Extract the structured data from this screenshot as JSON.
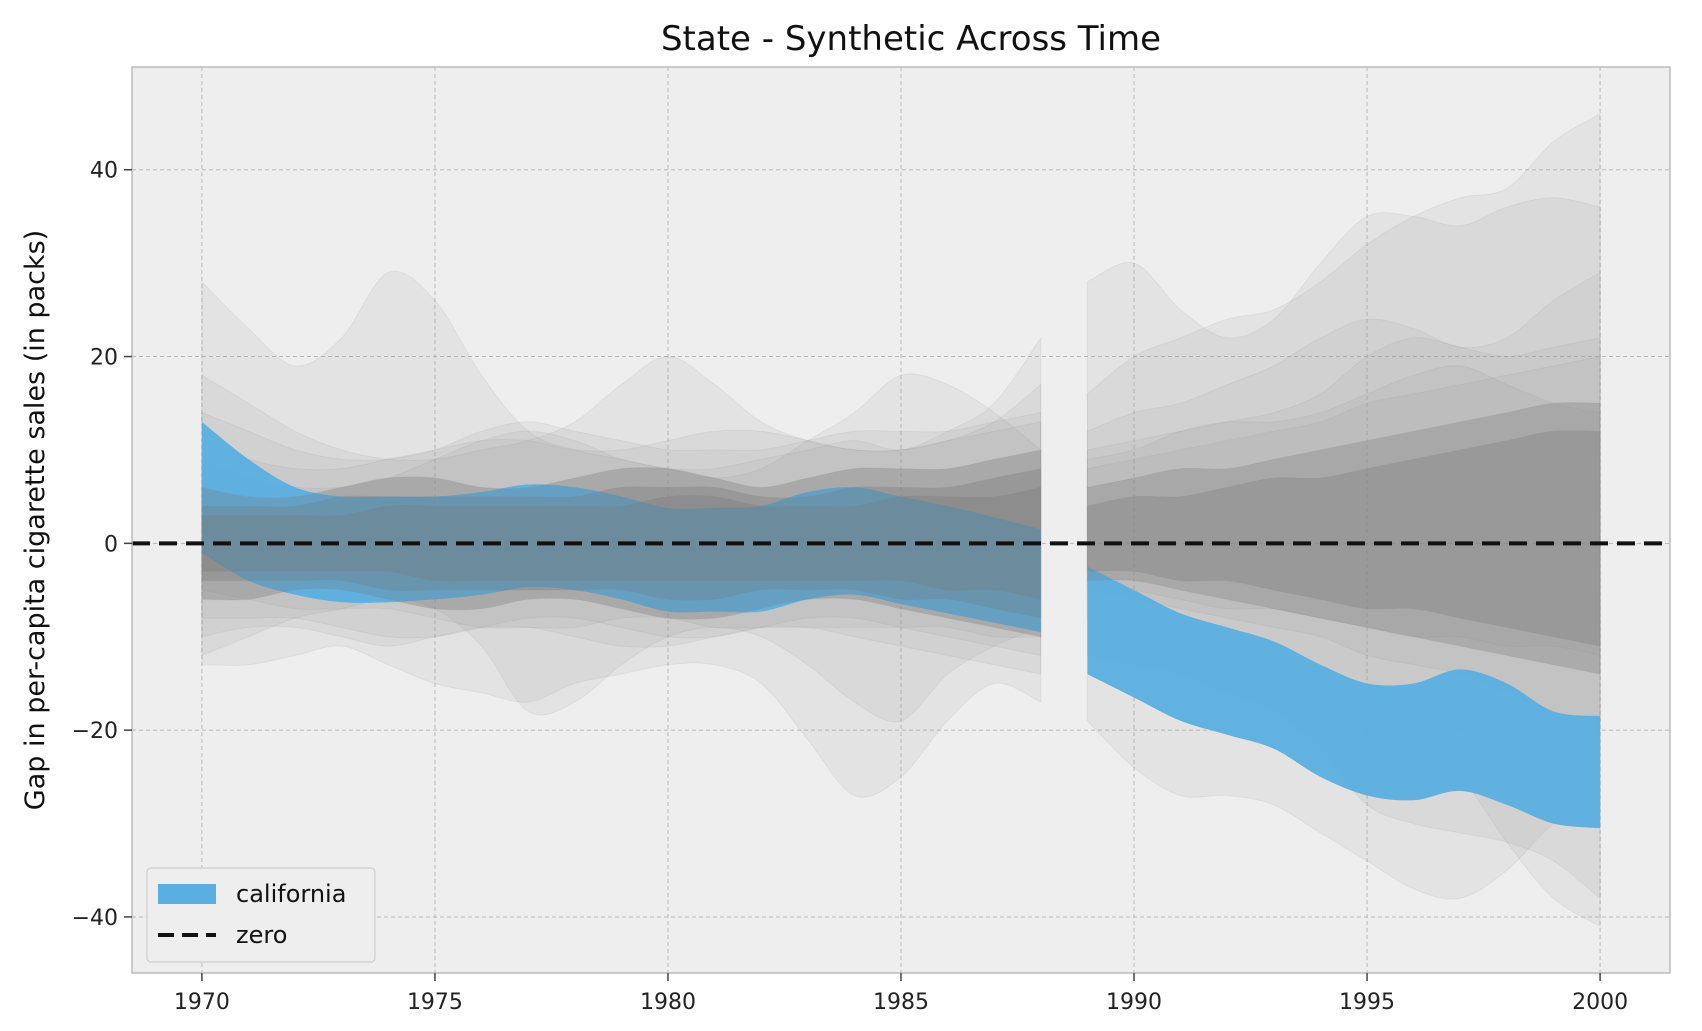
{
  "chart_data": {
    "type": "area",
    "title": "State - Synthetic Across Time",
    "xlabel": "",
    "ylabel": "Gap in per-capita cigarette sales (in packs)",
    "xlim": [
      1968.5,
      2001.5
    ],
    "ylim": [
      -46,
      51
    ],
    "xticks": [
      1970,
      1975,
      1980,
      1985,
      1990,
      1995,
      2000
    ],
    "yticks": [
      -40,
      -20,
      0,
      20,
      40
    ],
    "xtick_labels": [
      "1970",
      "1975",
      "1980",
      "1985",
      "1990",
      "1995",
      "2000"
    ],
    "ytick_labels": [
      "−40",
      "−20",
      "0",
      "20",
      "40"
    ],
    "grid": true,
    "legend_position": "lower-left",
    "colors": {
      "background": "#eeeeee",
      "california": "#5aafe0",
      "placebo": "#9a9a9a",
      "zero": "#111111",
      "grid": "#b8b8b8"
    },
    "zero_line": {
      "name": "zero",
      "y": 0
    },
    "california": {
      "name": "california",
      "segments": [
        {
          "x": [
            1970,
            1971,
            1972,
            1973,
            1974,
            1975,
            1976,
            1977,
            1978,
            1979,
            1980,
            1981,
            1982,
            1983,
            1984,
            1985,
            1986,
            1987,
            1988
          ],
          "upper": [
            13,
            9,
            6,
            5,
            5,
            5,
            5.5,
            6.3,
            6,
            5,
            3.8,
            3.8,
            4,
            5.5,
            6,
            5,
            4,
            2.8,
            1.5
          ],
          "lower": [
            -1,
            -4,
            -5.5,
            -6.3,
            -6.3,
            -6,
            -5.5,
            -4.7,
            -5,
            -6,
            -7.3,
            -7.3,
            -7.3,
            -6,
            -5.5,
            -6.5,
            -7.5,
            -8.5,
            -9.5
          ]
        },
        {
          "x": [
            1989,
            1990,
            1991,
            1992,
            1993,
            1994,
            1995,
            1996,
            1997,
            1998,
            1999,
            2000
          ],
          "upper": [
            -2.5,
            -5,
            -7.5,
            -9,
            -10.5,
            -13,
            -15,
            -15,
            -13.5,
            -15,
            -18,
            -18.5
          ],
          "lower": [
            -14,
            -16.5,
            -19,
            -20.5,
            -22,
            -25,
            -27,
            -27.5,
            -26.5,
            -28,
            -30,
            -30.5
          ]
        }
      ]
    },
    "placebo_bands": {
      "description_count": 38,
      "segments": [
        {
          "x": [
            1970,
            1971,
            1972,
            1973,
            1974,
            1975,
            1976,
            1977,
            1978,
            1979,
            1980,
            1981,
            1982,
            1983,
            1984,
            1985,
            1986,
            1987,
            1988
          ],
          "bands": [
            {
              "upper": [
                28,
                23,
                19,
                22,
                29,
                26,
                18,
                12,
                10,
                9,
                8,
                8,
                9,
                10,
                11,
                10,
                12,
                15,
                22
              ],
              "lower": [
                -10,
                -9,
                -9,
                -10,
                -11,
                -10,
                -9,
                -9,
                -10,
                -11,
                -11,
                -10,
                -9,
                -9,
                -10,
                -11,
                -12,
                -13,
                -14
              ]
            },
            {
              "upper": [
                18,
                15,
                12,
                10,
                9,
                9,
                10,
                11,
                13,
                17,
                20,
                17,
                13,
                11,
                10,
                10,
                11,
                13,
                17
              ],
              "lower": [
                -13,
                -13,
                -12,
                -11,
                -13,
                -15,
                -16,
                -17,
                -15,
                -14,
                -13,
                -13,
                -15,
                -21,
                -27,
                -25,
                -19,
                -15,
                -17
              ]
            },
            {
              "upper": [
                9,
                7,
                6,
                6,
                7,
                9,
                11,
                12,
                11,
                9,
                8,
                7,
                8,
                11,
                14,
                18,
                17,
                14,
                10
              ],
              "lower": [
                -12,
                -10,
                -8,
                -7,
                -6,
                -7,
                -11,
                -18,
                -17,
                -13,
                -10,
                -9,
                -10,
                -13,
                -17,
                -19,
                -14,
                -11,
                -9
              ]
            },
            {
              "upper": [
                11,
                9,
                8,
                8,
                9,
                10,
                11,
                11,
                10,
                10,
                11,
                12,
                12,
                11,
                10,
                10,
                11,
                12,
                13
              ],
              "lower": [
                -8,
                -8,
                -8,
                -9,
                -10,
                -10,
                -9,
                -8,
                -8,
                -9,
                -10,
                -10,
                -9,
                -8,
                -8,
                -9,
                -10,
                -11,
                -12
              ]
            },
            {
              "upper": [
                6,
                5,
                5,
                6,
                7,
                7,
                6,
                6,
                7,
                8,
                8,
                7,
                6,
                7,
                8,
                8,
                8,
                9,
                10
              ],
              "lower": [
                -6,
                -6,
                -5,
                -5,
                -6,
                -7,
                -7,
                -6,
                -6,
                -7,
                -8,
                -8,
                -7,
                -6,
                -6,
                -7,
                -8,
                -9,
                -10
              ]
            },
            {
              "upper": [
                4,
                4,
                4,
                5,
                5,
                5,
                5,
                5,
                5,
                6,
                6,
                6,
                5,
                5,
                6,
                6,
                6,
                7,
                8
              ],
              "lower": [
                -4,
                -4,
                -4,
                -4,
                -5,
                -5,
                -5,
                -5,
                -5,
                -5,
                -6,
                -6,
                -5,
                -5,
                -5,
                -6,
                -6,
                -7,
                -8
              ]
            },
            {
              "upper": [
                3,
                3,
                3,
                3,
                4,
                4,
                4,
                4,
                4,
                4,
                5,
                5,
                4,
                4,
                4,
                5,
                5,
                5,
                6
              ],
              "lower": [
                -3,
                -3,
                -3,
                -3,
                -3,
                -4,
                -4,
                -4,
                -4,
                -4,
                -4,
                -4,
                -4,
                -4,
                -4,
                -4,
                -5,
                -5,
                -6
              ]
            },
            {
              "upper": [
                14,
                12,
                10,
                9,
                9,
                10,
                12,
                13,
                12,
                11,
                10,
                10,
                10,
                11,
                12,
                12,
                12,
                13,
                14
              ],
              "lower": [
                -5,
                -6,
                -7,
                -7,
                -7,
                -8,
                -9,
                -9,
                -9,
                -8,
                -8,
                -9,
                -9,
                -9,
                -9,
                -9,
                -9,
                -10,
                -10
              ]
            }
          ]
        },
        {
          "x": [
            1989,
            1990,
            1991,
            1992,
            1993,
            1994,
            1995,
            1996,
            1997,
            1998,
            1999,
            2000
          ],
          "bands": [
            {
              "upper": [
                28,
                30,
                25,
                22,
                24,
                30,
                35,
                35,
                34,
                36,
                37,
                36
              ],
              "lower": [
                -12,
                -13,
                -14,
                -16,
                -18,
                -22,
                -28,
                -30,
                -31,
                -32,
                -34,
                -38
              ]
            },
            {
              "upper": [
                16,
                20,
                22,
                24,
                25,
                28,
                32,
                35,
                37,
                38,
                43,
                46
              ],
              "lower": [
                -19,
                -24,
                -27,
                -27,
                -28,
                -31,
                -34,
                -37,
                -38,
                -35,
                -30,
                -27
              ]
            },
            {
              "upper": [
                12,
                14,
                15,
                17,
                19,
                22,
                24,
                23,
                21,
                22,
                26,
                29
              ],
              "lower": [
                -8,
                -9,
                -10,
                -12,
                -14,
                -17,
                -20,
                -22,
                -25,
                -32,
                -38,
                -41
              ]
            },
            {
              "upper": [
                10,
                11,
                12,
                13,
                14,
                16,
                20,
                22,
                21,
                20,
                21,
                22
              ],
              "lower": [
                -6,
                -7,
                -9,
                -10,
                -12,
                -14,
                -16,
                -18,
                -20,
                -24,
                -27,
                -30
              ]
            },
            {
              "upper": [
                8,
                9,
                10,
                11,
                12,
                13,
                15,
                16,
                17,
                18,
                19,
                20
              ],
              "lower": [
                -5,
                -6,
                -7,
                -8,
                -9,
                -10,
                -12,
                -13,
                -14,
                -16,
                -18,
                -19
              ]
            },
            {
              "upper": [
                6,
                7,
                8,
                8,
                9,
                10,
                11,
                12,
                13,
                14,
                15,
                15
              ],
              "lower": [
                -4,
                -4,
                -5,
                -6,
                -7,
                -8,
                -9,
                -10,
                -11,
                -12,
                -13,
                -14
              ]
            },
            {
              "upper": [
                4,
                5,
                5,
                6,
                7,
                7,
                8,
                9,
                10,
                11,
                12,
                12
              ],
              "lower": [
                -3,
                -3,
                -4,
                -4,
                -5,
                -6,
                -7,
                -7,
                -8,
                -9,
                -10,
                -11
              ]
            },
            {
              "upper": [
                9,
                10,
                12,
                13,
                13,
                14,
                16,
                18,
                19,
                17,
                15,
                14
              ],
              "lower": [
                -4,
                -5,
                -6,
                -7,
                -7,
                -8,
                -9,
                -10,
                -10,
                -11,
                -11,
                -12
              ]
            }
          ]
        }
      ]
    }
  }
}
